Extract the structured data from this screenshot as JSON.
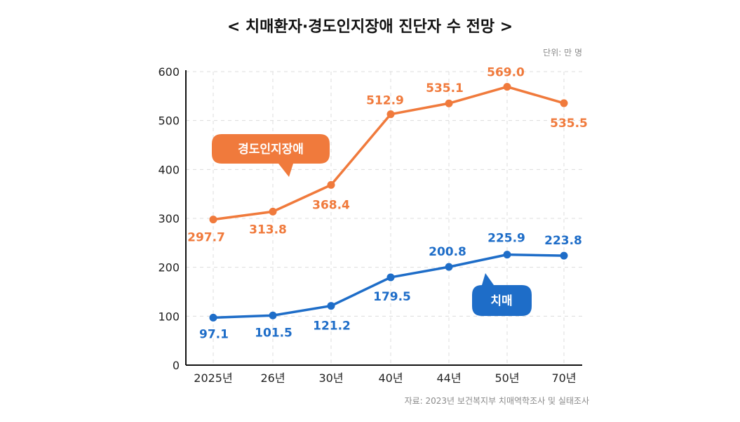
{
  "title": "< 치매환자·경도인지장애 진단자 수 전망 >",
  "unit": "단위: 만 명",
  "source": "자료: 2023년 보건복지부 치매역학조사 및 실태조사",
  "colors": {
    "orange": "#f07a3c",
    "blue": "#1e6dc8",
    "grid": "#dcdcdc",
    "axis": "#111111"
  },
  "chart_data": {
    "type": "line",
    "categories": [
      "2025년",
      "26년",
      "30년",
      "40년",
      "44년",
      "50년",
      "70년"
    ],
    "ylim": [
      0,
      600
    ],
    "yticks": [
      "0",
      "100",
      "200",
      "300",
      "400",
      "500",
      "600"
    ],
    "grid": true,
    "series": [
      {
        "name": "경도인지장애",
        "color": "#f07a3c",
        "values": [
          297.7,
          313.8,
          368.4,
          512.9,
          535.1,
          569.0,
          535.5
        ],
        "labels": [
          "297.7",
          "313.8",
          "368.4",
          "512.9",
          "535.1",
          "569.0",
          "535.5"
        ]
      },
      {
        "name": "치매",
        "color": "#1e6dc8",
        "values": [
          97.1,
          101.5,
          121.2,
          179.5,
          200.8,
          225.9,
          223.8
        ],
        "labels": [
          "97.1",
          "101.5",
          "121.2",
          "179.5",
          "200.8",
          "225.9",
          "223.8"
        ]
      }
    ]
  }
}
